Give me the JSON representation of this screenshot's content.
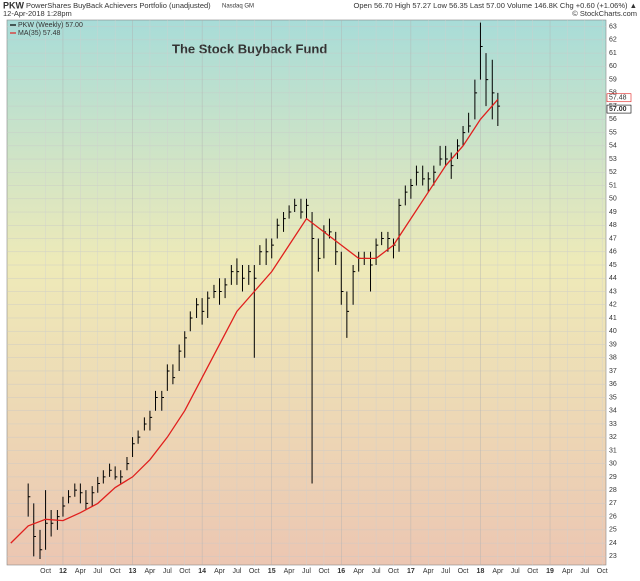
{
  "header": {
    "symbol": "PKW",
    "name": "PowerShares BuyBack Achievers Portfolio (unadjusted)",
    "exchange": "Nasdaq GM",
    "date": "12-Apr-2018 1:28pm",
    "quote": "Open 56.70  High 57.27  Low 56.35  Last 57.00  Volume 146.8K  Chg +0.60 (+1.06%) ▲",
    "copyright": "© StockCharts.com"
  },
  "chart_data": {
    "type": "ohlc",
    "title": "The Stock Buyback Fund",
    "x": [
      2011.5,
      2011.58,
      2011.67,
      2011.75,
      2011.83,
      2011.92,
      2012.0,
      2012.08,
      2012.17,
      2012.25,
      2012.33,
      2012.42,
      2012.5,
      2012.58,
      2012.67,
      2012.75,
      2012.83,
      2012.92,
      2013.0,
      2013.08,
      2013.17,
      2013.25,
      2013.33,
      2013.42,
      2013.5,
      2013.58,
      2013.67,
      2013.75,
      2013.83,
      2013.92,
      2014.0,
      2014.08,
      2014.17,
      2014.25,
      2014.33,
      2014.42,
      2014.5,
      2014.58,
      2014.67,
      2014.75,
      2014.83,
      2014.92,
      2015.0,
      2015.08,
      2015.17,
      2015.25,
      2015.33,
      2015.42,
      2015.5,
      2015.58,
      2015.67,
      2015.75,
      2015.83,
      2015.92,
      2016.0,
      2016.08,
      2016.17,
      2016.25,
      2016.33,
      2016.42,
      2016.5,
      2016.58,
      2016.67,
      2016.75,
      2016.83,
      2016.92,
      2017.0,
      2017.08,
      2017.17,
      2017.25,
      2017.33,
      2017.42,
      2017.5,
      2017.58,
      2017.67,
      2017.75,
      2017.83,
      2017.92,
      2018.0,
      2018.08,
      2018.17,
      2018.25
    ],
    "series": [
      {
        "name": "PKW (Weekly) 57.00",
        "color": "#000000",
        "high": [
          28.5,
          27,
          25,
          28,
          26.5,
          26.5,
          27.5,
          28,
          28.5,
          28.5,
          28,
          28.3,
          29,
          29.5,
          30,
          29.8,
          29.5,
          30.5,
          32,
          32.5,
          33.5,
          34,
          35.5,
          35.5,
          37.5,
          37.5,
          39,
          40,
          41.5,
          42.5,
          42.5,
          43,
          43.5,
          44,
          44,
          45,
          45.5,
          45,
          45,
          45,
          46.5,
          47,
          47,
          48.5,
          49,
          49.5,
          50,
          50,
          50,
          49,
          47,
          48,
          48.5,
          47.5,
          46,
          43,
          45,
          46,
          46,
          46,
          47,
          47.5,
          47.5,
          47,
          50,
          51,
          51.5,
          52.5,
          52.5,
          52,
          52.5,
          54,
          54,
          53.5,
          54.5,
          55.5,
          56.5,
          59,
          63.3,
          61,
          60.5,
          58
        ],
        "low": [
          26,
          23,
          22.8,
          23.5,
          24.5,
          25,
          26,
          27,
          27.5,
          27,
          26.5,
          26.8,
          27.8,
          28.5,
          29,
          28.8,
          28.5,
          29.5,
          30.5,
          31.5,
          32.5,
          32.5,
          34,
          34,
          35.5,
          36,
          37,
          38,
          40,
          41,
          40.5,
          41,
          42.5,
          42,
          42.5,
          43.5,
          43.5,
          43,
          43.5,
          38,
          45,
          45,
          45.5,
          47,
          47.5,
          48.5,
          49,
          48.5,
          48.5,
          28.5,
          44.5,
          45.5,
          47,
          45,
          42,
          39.5,
          42,
          44.5,
          45,
          43,
          45,
          46.5,
          46,
          45.5,
          46,
          49.5,
          50,
          51,
          51,
          50.5,
          51,
          52.5,
          52.5,
          51.5,
          53,
          54,
          55,
          56,
          59,
          57,
          56,
          55.5
        ],
        "values": [
          27.5,
          24.5,
          23.5,
          25.5,
          25.5,
          26,
          26.8,
          27.5,
          28,
          27.8,
          27,
          27.8,
          28.5,
          29,
          29.5,
          29,
          29,
          30,
          31.5,
          32,
          33,
          33.5,
          35,
          35,
          37,
          36.5,
          38.5,
          39.5,
          41,
          42,
          41.5,
          42.5,
          43,
          43,
          43.5,
          44.5,
          44.5,
          44,
          44.5,
          44,
          46,
          46,
          46.5,
          48,
          48.5,
          49,
          49.5,
          49,
          49.5,
          47,
          45.5,
          47.5,
          47.5,
          46,
          43,
          41.5,
          44.5,
          45.5,
          45.5,
          45,
          46.5,
          47,
          47,
          46.5,
          49.5,
          50.5,
          51,
          52,
          51.5,
          51.5,
          52,
          53,
          53,
          52.5,
          54,
          55,
          55.5,
          58,
          61.5,
          59,
          58,
          57
        ]
      },
      {
        "name": "MA(35) 57.48",
        "color": "#e0201e",
        "x": [
          2011.25,
          2011.5,
          2011.75,
          2012.0,
          2012.25,
          2012.5,
          2012.75,
          2013.0,
          2013.25,
          2013.5,
          2013.75,
          2014.0,
          2014.25,
          2014.5,
          2014.75,
          2015.0,
          2015.25,
          2015.5,
          2015.75,
          2016.0,
          2016.25,
          2016.5,
          2016.75,
          2017.0,
          2017.25,
          2017.5,
          2017.75,
          2018.0,
          2018.25
        ],
        "values": [
          24,
          25.3,
          25.8,
          25.7,
          26.3,
          27,
          28.2,
          29,
          30.3,
          32,
          34,
          36.5,
          39,
          41.5,
          43,
          44.5,
          46.5,
          48.5,
          47.5,
          46.5,
          45.5,
          45.5,
          46.5,
          48.5,
          50.5,
          52.5,
          54,
          56,
          57.5
        ]
      }
    ],
    "last_labels": [
      {
        "value": 57.48,
        "label": "57.48"
      },
      {
        "value": 57,
        "label": "57.00"
      }
    ],
    "xlim": [
      2011.21,
      2019.79
    ],
    "xticks": [
      {
        "value": 2011.75,
        "label": "Oct"
      },
      {
        "value": 2012,
        "label": "12"
      },
      {
        "value": 2012.25,
        "label": "Apr"
      },
      {
        "value": 2012.5,
        "label": "Jul"
      },
      {
        "value": 2012.75,
        "label": "Oct"
      },
      {
        "value": 2013,
        "label": "13"
      },
      {
        "value": 2013.25,
        "label": "Apr"
      },
      {
        "value": 2013.5,
        "label": "Jul"
      },
      {
        "value": 2013.75,
        "label": "Oct"
      },
      {
        "value": 2014,
        "label": "14"
      },
      {
        "value": 2014.25,
        "label": "Apr"
      },
      {
        "value": 2014.5,
        "label": "Jul"
      },
      {
        "value": 2014.75,
        "label": "Oct"
      },
      {
        "value": 2015,
        "label": "15"
      },
      {
        "value": 2015.25,
        "label": "Apr"
      },
      {
        "value": 2015.5,
        "label": "Jul"
      },
      {
        "value": 2015.75,
        "label": "Oct"
      },
      {
        "value": 2016,
        "label": "16"
      },
      {
        "value": 2016.25,
        "label": "Apr"
      },
      {
        "value": 2016.5,
        "label": "Jul"
      },
      {
        "value": 2016.75,
        "label": "Oct"
      },
      {
        "value": 2017,
        "label": "17"
      },
      {
        "value": 2017.25,
        "label": "Apr"
      },
      {
        "value": 2017.5,
        "label": "Jul"
      },
      {
        "value": 2017.75,
        "label": "Oct"
      },
      {
        "value": 2018,
        "label": "18"
      },
      {
        "value": 2018.25,
        "label": "Apr"
      },
      {
        "value": 2018.5,
        "label": "Jul"
      },
      {
        "value": 2018.75,
        "label": "Oct"
      },
      {
        "value": 2019,
        "label": "19"
      },
      {
        "value": 2019.25,
        "label": "Apr"
      },
      {
        "value": 2019.5,
        "label": "Jul"
      },
      {
        "value": 2019.75,
        "label": "Oct"
      }
    ],
    "ylim": [
      22.5,
      63.5
    ],
    "yticks": [
      23,
      24,
      25,
      26,
      27,
      28,
      29,
      30,
      31,
      32,
      33,
      34,
      35,
      36,
      37,
      38,
      39,
      40,
      41,
      42,
      43,
      44,
      45,
      46,
      47,
      48,
      49,
      50,
      51,
      52,
      53,
      54,
      55,
      56,
      57,
      58,
      59,
      60,
      61,
      62,
      63
    ],
    "grid": true
  }
}
